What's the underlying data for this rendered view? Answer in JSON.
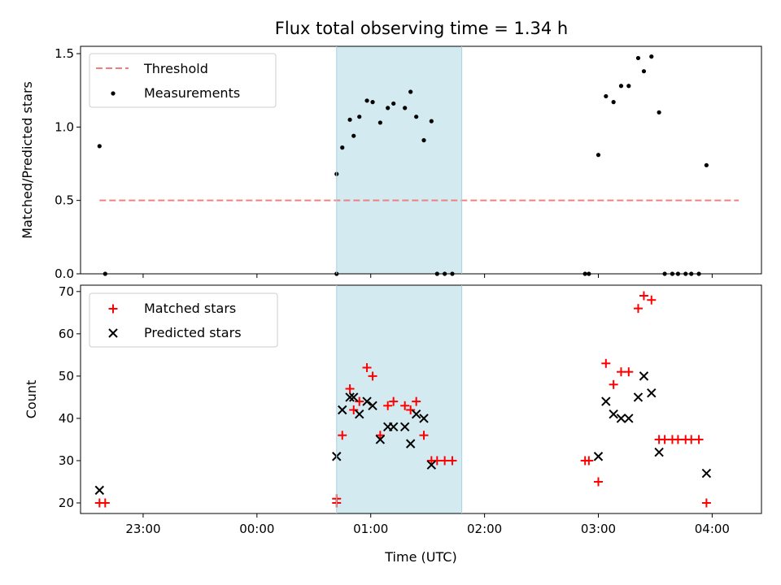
{
  "chart_data": [
    {
      "type": "scatter",
      "title": "Flux total observing time = 1.34 h",
      "xlabel": "",
      "ylabel": "Matched/Predicted stars",
      "xlim": [
        "22:27",
        "04:26"
      ],
      "ylim": [
        0,
        1.55
      ],
      "yticks": [
        "0.0",
        "0.5",
        "1.0",
        "1.5"
      ],
      "shaded_region": [
        "00:42",
        "01:48"
      ],
      "shaded_color": "#d3eaf0",
      "legend": {
        "position": "top-left",
        "entries": [
          "Threshold",
          "Measurements"
        ]
      },
      "threshold": {
        "name": "Threshold",
        "value": 0.5,
        "x_range": [
          "22:37",
          "04:14"
        ],
        "color": "#f08080"
      },
      "series": [
        {
          "name": "Measurements",
          "color": "#000000",
          "points": [
            [
              "22:37",
              0.87
            ],
            [
              "22:40",
              0.0
            ],
            [
              "00:42",
              0.0
            ],
            [
              "00:42",
              0.68
            ],
            [
              "00:45",
              0.86
            ],
            [
              "00:49",
              1.05
            ],
            [
              "00:51",
              0.94
            ],
            [
              "00:54",
              1.07
            ],
            [
              "00:58",
              1.18
            ],
            [
              "01:01",
              1.17
            ],
            [
              "01:05",
              1.03
            ],
            [
              "01:09",
              1.13
            ],
            [
              "01:12",
              1.16
            ],
            [
              "01:18",
              1.13
            ],
            [
              "01:21",
              1.24
            ],
            [
              "01:24",
              1.07
            ],
            [
              "01:28",
              0.91
            ],
            [
              "01:32",
              1.04
            ],
            [
              "01:35",
              0.0
            ],
            [
              "01:39",
              0.0
            ],
            [
              "01:43",
              0.0
            ],
            [
              "02:53",
              0.0
            ],
            [
              "02:55",
              0.0
            ],
            [
              "03:00",
              0.81
            ],
            [
              "03:04",
              1.21
            ],
            [
              "03:08",
              1.17
            ],
            [
              "03:12",
              1.28
            ],
            [
              "03:16",
              1.28
            ],
            [
              "03:21",
              1.47
            ],
            [
              "03:24",
              1.38
            ],
            [
              "03:28",
              1.48
            ],
            [
              "03:32",
              1.1
            ],
            [
              "03:35",
              0.0
            ],
            [
              "03:39",
              0.0
            ],
            [
              "03:42",
              0.0
            ],
            [
              "03:46",
              0.0
            ],
            [
              "03:49",
              0.0
            ],
            [
              "03:53",
              0.0
            ],
            [
              "03:57",
              0.74
            ]
          ]
        }
      ]
    },
    {
      "type": "scatter",
      "title": "",
      "xlabel": "Time (UTC)",
      "ylabel": "Count",
      "xlim": [
        "22:27",
        "04:26"
      ],
      "ylim": [
        17.5,
        71.5
      ],
      "yticks": [
        "20",
        "30",
        "40",
        "50",
        "60",
        "70"
      ],
      "xticks": [
        "23:00",
        "00:00",
        "01:00",
        "02:00",
        "03:00",
        "04:00"
      ],
      "shaded_region": [
        "00:42",
        "01:48"
      ],
      "shaded_color": "#d3eaf0",
      "legend": {
        "position": "top-left",
        "entries": [
          "Matched stars",
          "Predicted stars"
        ]
      },
      "series": [
        {
          "name": "Matched stars",
          "marker": "plus",
          "color": "#ff0000",
          "points": [
            [
              "22:37",
              20
            ],
            [
              "22:40",
              20
            ],
            [
              "00:42",
              20
            ],
            [
              "00:42",
              21
            ],
            [
              "00:45",
              36
            ],
            [
              "00:49",
              47
            ],
            [
              "00:51",
              42
            ],
            [
              "00:54",
              44
            ],
            [
              "00:58",
              52
            ],
            [
              "01:01",
              50
            ],
            [
              "01:05",
              36
            ],
            [
              "01:09",
              43
            ],
            [
              "01:12",
              44
            ],
            [
              "01:18",
              43
            ],
            [
              "01:21",
              42
            ],
            [
              "01:24",
              44
            ],
            [
              "01:28",
              36
            ],
            [
              "01:32",
              30
            ],
            [
              "01:35",
              30
            ],
            [
              "01:39",
              30
            ],
            [
              "01:43",
              30
            ],
            [
              "02:53",
              30
            ],
            [
              "02:55",
              30
            ],
            [
              "03:00",
              25
            ],
            [
              "03:04",
              53
            ],
            [
              "03:08",
              48
            ],
            [
              "03:12",
              51
            ],
            [
              "03:16",
              51
            ],
            [
              "03:21",
              66
            ],
            [
              "03:24",
              69
            ],
            [
              "03:28",
              68
            ],
            [
              "03:32",
              35
            ],
            [
              "03:35",
              35
            ],
            [
              "03:39",
              35
            ],
            [
              "03:42",
              35
            ],
            [
              "03:46",
              35
            ],
            [
              "03:49",
              35
            ],
            [
              "03:53",
              35
            ],
            [
              "03:57",
              20
            ]
          ]
        },
        {
          "name": "Predicted stars",
          "marker": "x",
          "color": "#000000",
          "points": [
            [
              "22:37",
              23
            ],
            [
              "00:42",
              31
            ],
            [
              "00:45",
              42
            ],
            [
              "00:49",
              45
            ],
            [
              "00:51",
              45
            ],
            [
              "00:54",
              41
            ],
            [
              "00:58",
              44
            ],
            [
              "01:01",
              43
            ],
            [
              "01:05",
              35
            ],
            [
              "01:09",
              38
            ],
            [
              "01:12",
              38
            ],
            [
              "01:18",
              38
            ],
            [
              "01:21",
              34
            ],
            [
              "01:24",
              41
            ],
            [
              "01:28",
              40
            ],
            [
              "01:32",
              29
            ],
            [
              "03:00",
              31
            ],
            [
              "03:04",
              44
            ],
            [
              "03:08",
              41
            ],
            [
              "03:12",
              40
            ],
            [
              "03:16",
              40
            ],
            [
              "03:21",
              45
            ],
            [
              "03:24",
              50
            ],
            [
              "03:28",
              46
            ],
            [
              "03:32",
              32
            ],
            [
              "03:57",
              27
            ]
          ]
        }
      ]
    }
  ]
}
